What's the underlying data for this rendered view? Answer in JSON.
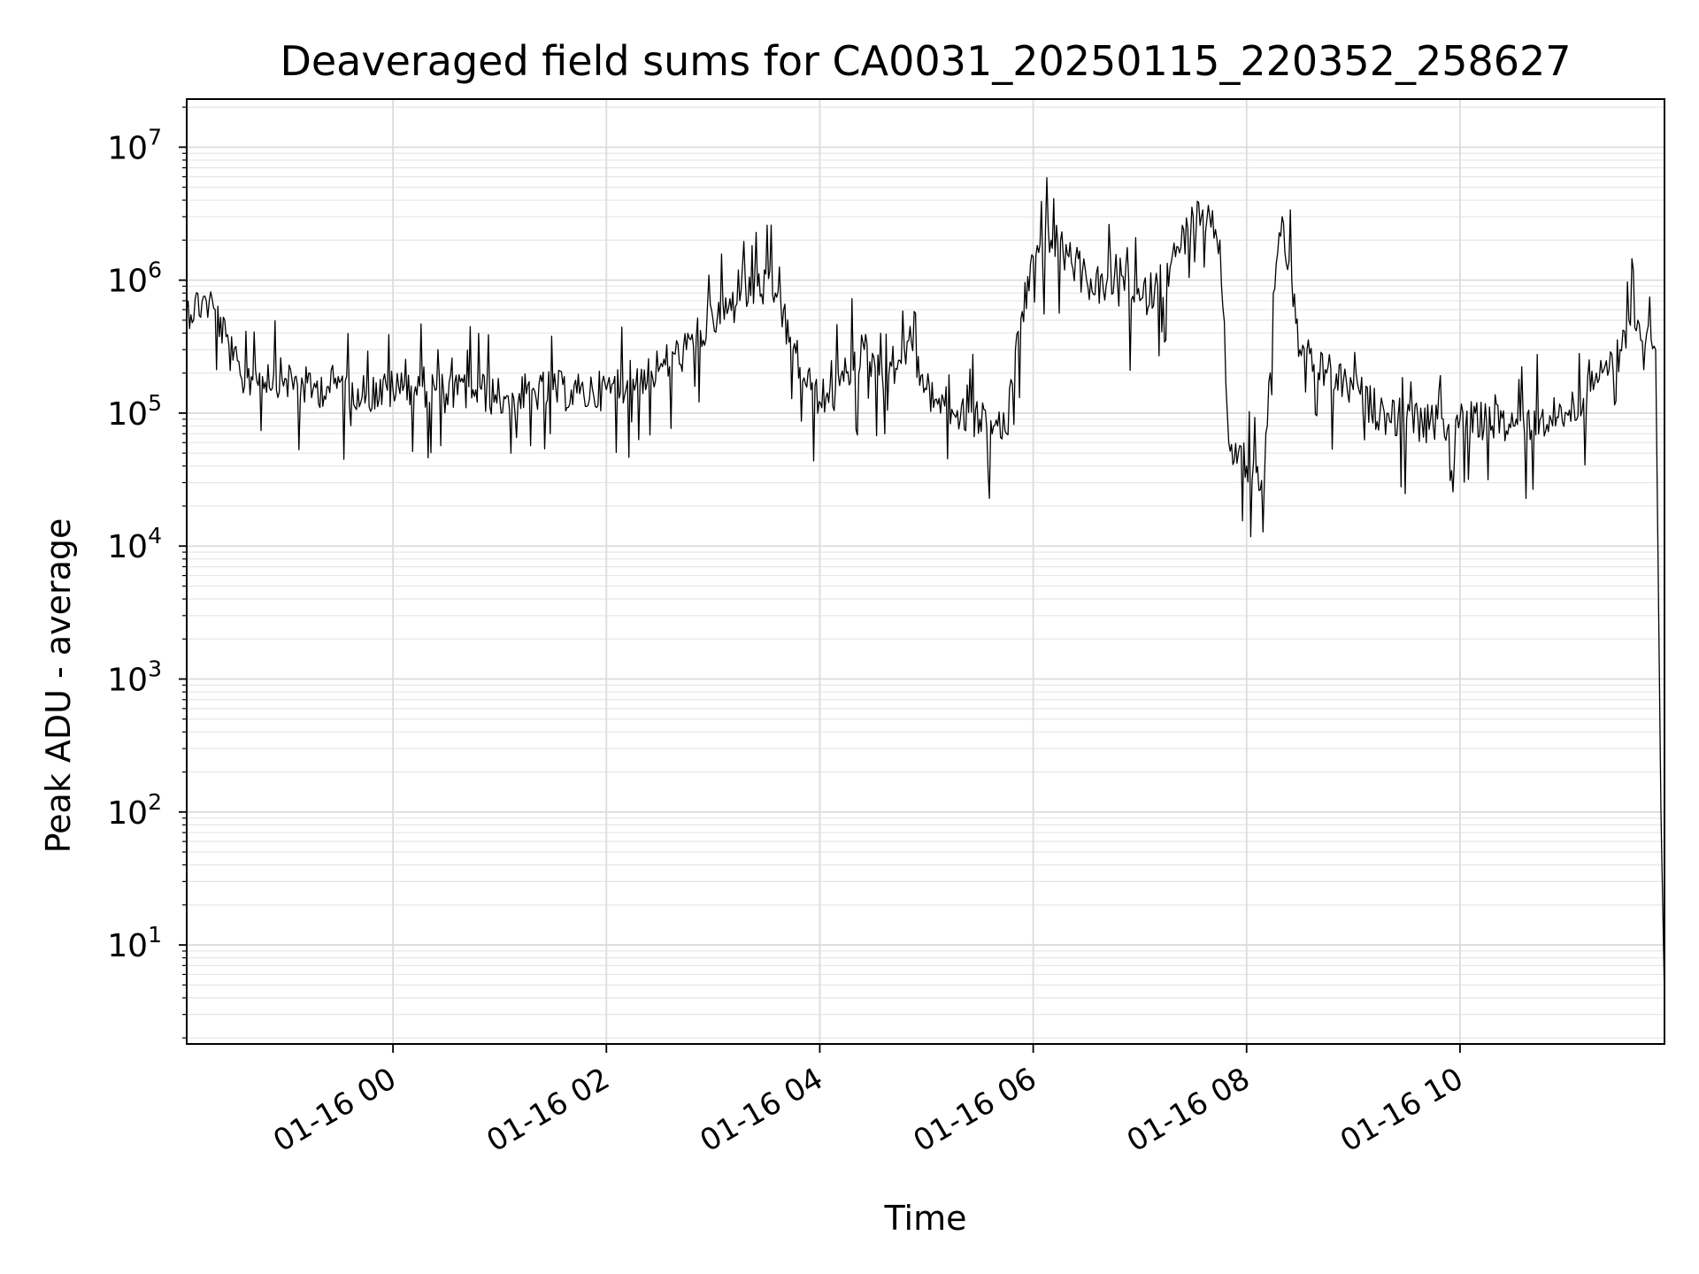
{
  "chart_data": {
    "type": "line",
    "title": "Deaveraged field sums for CA0031_20250115_220352_258627",
    "xlabel": "Time",
    "ylabel": "Peak ADU - average",
    "y_scale": "log",
    "xlim": [
      "2025-01-15 22:04",
      "2025-01-16 11:55"
    ],
    "ylim": [
      1.8,
      23000000
    ],
    "x_ticks": [
      {
        "value": "2025-01-16 00:00",
        "label": "01-16 00"
      },
      {
        "value": "2025-01-16 02:00",
        "label": "01-16 02"
      },
      {
        "value": "2025-01-16 04:00",
        "label": "01-16 04"
      },
      {
        "value": "2025-01-16 06:00",
        "label": "01-16 06"
      },
      {
        "value": "2025-01-16 08:00",
        "label": "01-16 08"
      },
      {
        "value": "2025-01-16 10:00",
        "label": "01-16 10"
      }
    ],
    "y_ticks": [
      {
        "value": 10,
        "base": "10",
        "exp": "1"
      },
      {
        "value": 100,
        "base": "10",
        "exp": "2"
      },
      {
        "value": 1000,
        "base": "10",
        "exp": "3"
      },
      {
        "value": 10000,
        "base": "10",
        "exp": "4"
      },
      {
        "value": 100000,
        "base": "10",
        "exp": "5"
      },
      {
        "value": 1000000,
        "base": "10",
        "exp": "6"
      },
      {
        "value": 10000000,
        "base": "10",
        "exp": "7"
      }
    ],
    "grid": true,
    "line_color": "#000000",
    "series": [
      {
        "x": [
          "2025-01-15 22:04",
          "2025-01-15 22:15",
          "2025-01-15 22:20",
          "2025-01-15 22:30",
          "2025-01-15 22:35",
          "2025-01-15 22:45",
          "2025-01-15 23:00",
          "2025-01-15 23:15",
          "2025-01-15 23:30",
          "2025-01-15 23:45",
          "2025-01-16 00:00",
          "2025-01-16 00:15",
          "2025-01-16 00:30",
          "2025-01-16 00:45",
          "2025-01-16 01:00",
          "2025-01-16 01:15",
          "2025-01-16 01:30",
          "2025-01-16 01:45",
          "2025-01-16 02:00",
          "2025-01-16 02:15",
          "2025-01-16 02:30",
          "2025-01-16 02:45",
          "2025-01-16 03:00",
          "2025-01-16 03:15",
          "2025-01-16 03:25",
          "2025-01-16 03:35",
          "2025-01-16 03:45",
          "2025-01-16 03:55",
          "2025-01-16 04:05",
          "2025-01-16 04:15",
          "2025-01-16 04:25",
          "2025-01-16 04:35",
          "2025-01-16 04:45",
          "2025-01-16 04:50",
          "2025-01-16 05:00",
          "2025-01-16 05:15",
          "2025-01-16 05:30",
          "2025-01-16 05:40",
          "2025-01-16 05:45",
          "2025-01-16 05:50",
          "2025-01-16 06:00",
          "2025-01-16 06:10",
          "2025-01-16 06:20",
          "2025-01-16 06:30",
          "2025-01-16 06:45",
          "2025-01-16 07:00",
          "2025-01-16 07:10",
          "2025-01-16 07:20",
          "2025-01-16 07:30",
          "2025-01-16 07:40",
          "2025-01-16 07:45",
          "2025-01-16 07:50",
          "2025-01-16 08:00",
          "2025-01-16 08:10",
          "2025-01-16 08:15",
          "2025-01-16 08:20",
          "2025-01-16 08:30",
          "2025-01-16 08:45",
          "2025-01-16 09:00",
          "2025-01-16 09:15",
          "2025-01-16 09:30",
          "2025-01-16 09:45",
          "2025-01-16 10:00",
          "2025-01-16 10:15",
          "2025-01-16 10:30",
          "2025-01-16 10:45",
          "2025-01-16 11:00",
          "2025-01-16 11:15",
          "2025-01-16 11:20",
          "2025-01-16 11:30",
          "2025-01-16 11:35",
          "2025-01-16 11:40",
          "2025-01-16 11:45",
          "2025-01-16 11:50",
          "2025-01-16 11:53",
          "2025-01-16 11:55"
        ],
        "y": [
          600000,
          700000,
          600000,
          250000,
          180000,
          200000,
          180000,
          150000,
          170000,
          140000,
          150000,
          160000,
          140000,
          150000,
          130000,
          140000,
          150000,
          140000,
          150000,
          180000,
          220000,
          300000,
          500000,
          700000,
          900000,
          800000,
          300000,
          150000,
          120000,
          200000,
          300000,
          200000,
          250000,
          350000,
          150000,
          100000,
          90000,
          80000,
          70000,
          300000,
          1500000,
          2000000,
          1500000,
          1000000,
          800000,
          700000,
          900000,
          1500000,
          3000000,
          2500000,
          2000000,
          60000,
          40000,
          30000,
          800000,
          3000000,
          300000,
          200000,
          150000,
          100000,
          90000,
          80000,
          90000,
          85000,
          80000,
          90000,
          100000,
          150000,
          200000,
          300000,
          500000,
          500000,
          400000,
          300000,
          100,
          4
        ]
      }
    ]
  }
}
